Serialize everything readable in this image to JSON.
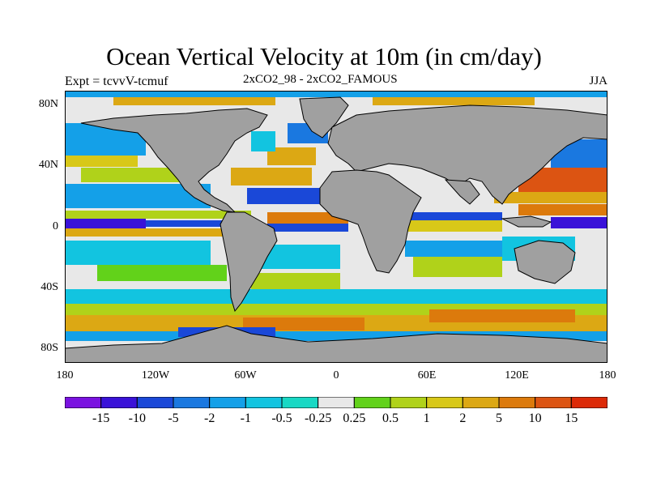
{
  "title": "Ocean Vertical Velocity at 10m (in cm/day)",
  "subtitle_left": "Expt = tcvvV-tcmuf",
  "subtitle_center": "2xCO2_98 - 2xCO2_FAMOUS",
  "subtitle_right": "JJA",
  "y_ticks": [
    "80N",
    "40N",
    "0",
    "40S",
    "80S"
  ],
  "x_ticks": [
    "180",
    "120W",
    "60W",
    "0",
    "60E",
    "120E",
    "180"
  ],
  "colorbar": {
    "colors": [
      "#7a12e0",
      "#3a12d8",
      "#1a48d8",
      "#1a78e0",
      "#14a0e8",
      "#12c4e0",
      "#18d8c4",
      "#e8e8e8",
      "#62d21a",
      "#b0d21a",
      "#d8c818",
      "#dca814",
      "#dc7a0c",
      "#dc5412",
      "#dc2a08"
    ],
    "labels": [
      "-15",
      "-10",
      "-5",
      "-2",
      "-1",
      "-0.5",
      "-0.25",
      "0.25",
      "0.5",
      "1",
      "2",
      "5",
      "10",
      "15"
    ]
  },
  "land_color": "#a0a0a0"
}
